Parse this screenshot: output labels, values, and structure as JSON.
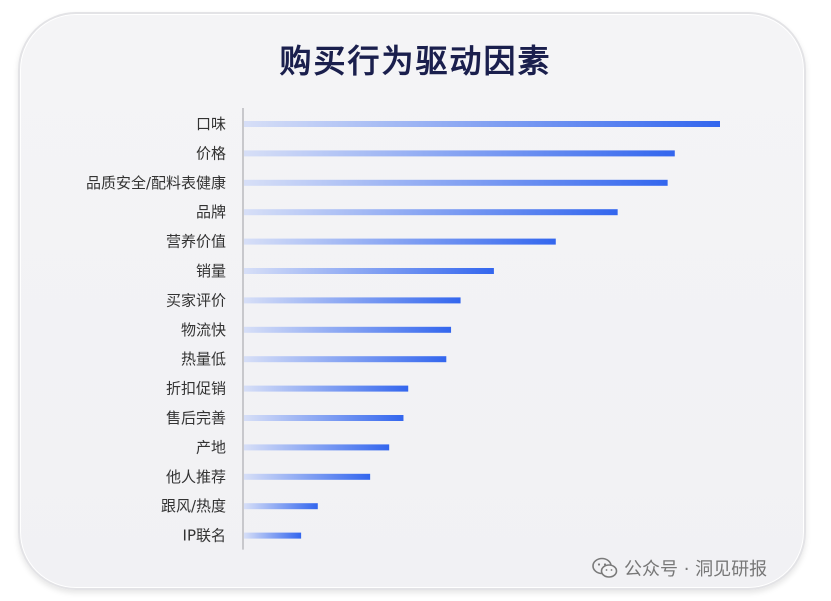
{
  "title": "购买行为驱动因素",
  "watermark": "公众号 · 洞见研报",
  "colors": {
    "bar_start": "#d7dff7",
    "bar_end": "#3366ee",
    "axis": "#c8c8cc",
    "label": "#333333",
    "title": "#1a1f4d"
  },
  "chart_data": {
    "type": "bar",
    "orientation": "horizontal",
    "categories": [
      "口味",
      "价格",
      "品质安全/配料表健康",
      "品牌",
      "营养价值",
      "销量",
      "买家评价",
      "物流快",
      "热量低",
      "折扣促销",
      "售后完善",
      "产地",
      "他人推荐",
      "跟风/热度",
      "IP联名"
    ],
    "values": [
      100,
      90.5,
      89,
      78.5,
      65.5,
      52.5,
      45.5,
      43.5,
      42.5,
      34.5,
      33.5,
      30.5,
      26.5,
      15.5,
      12
    ],
    "title": "购买行为驱动因素",
    "xlabel": "",
    "ylabel": "",
    "xlim": [
      0,
      100
    ],
    "grid": false,
    "legend": "none"
  }
}
